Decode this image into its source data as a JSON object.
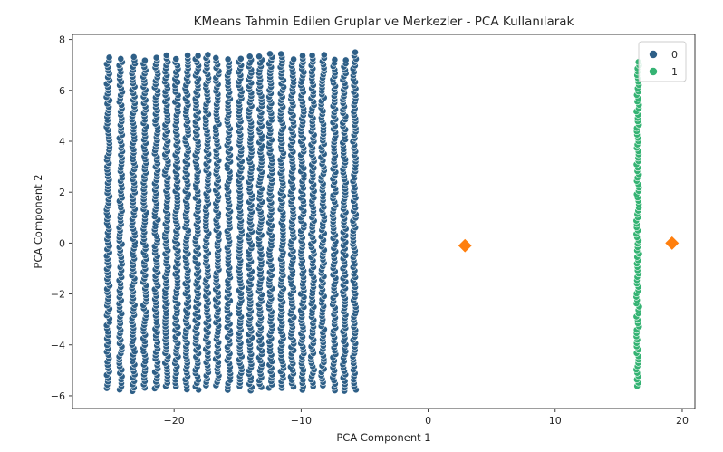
{
  "chart_data": {
    "type": "scatter",
    "title": "KMeans Tahmin Edilen Gruplar ve Merkezler - PCA Kullanılarak",
    "xlabel": "PCA Component 1",
    "ylabel": "PCA Component 2",
    "xlim": [
      -28,
      21
    ],
    "ylim": [
      -6.5,
      8.2
    ],
    "xticks": [
      -20,
      -10,
      0,
      10,
      20
    ],
    "xtick_labels": [
      "−20",
      "−10",
      "0",
      "10",
      "20"
    ],
    "yticks": [
      -6,
      -4,
      -2,
      0,
      2,
      4,
      6,
      8
    ],
    "ytick_labels": [
      "−6",
      "−4",
      "−2",
      "0",
      "2",
      "4",
      "6",
      "8"
    ],
    "grid": false,
    "legend": {
      "position": "top-right",
      "entries": [
        {
          "label": "0",
          "color": "#2e5f87"
        },
        {
          "label": "1",
          "color": "#35b373"
        }
      ]
    },
    "series": [
      {
        "name": "0",
        "color": "#2e5f87",
        "x_columns": [
          -25.2,
          -24.2,
          -23.2,
          -22.3,
          -21.4,
          -20.6,
          -19.8,
          -19.0,
          -18.2,
          -17.4,
          -16.6,
          -15.7,
          -14.8,
          -14.0,
          -13.2,
          -12.4,
          -11.5,
          -10.7,
          -9.9,
          -9.1,
          -8.3,
          -7.4,
          -6.6,
          -5.8
        ],
        "y_range": [
          -5.7,
          7.4
        ]
      },
      {
        "name": "1",
        "color": "#35b373",
        "x_columns": [
          16.5
        ],
        "y_range": [
          -5.6,
          7.1
        ]
      }
    ],
    "centroids": {
      "marker": "diamond",
      "color": "#ff7f0e",
      "points": [
        {
          "x": 2.9,
          "y": -0.1
        },
        {
          "x": 19.2,
          "y": 0.0
        }
      ]
    }
  }
}
